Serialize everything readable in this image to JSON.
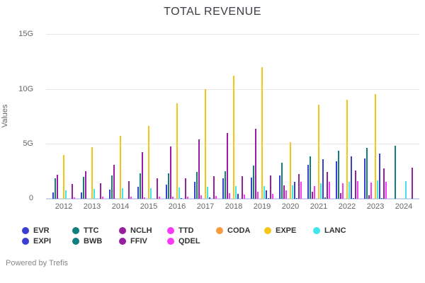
{
  "title": "TOTAL REVENUE",
  "y_axis": {
    "label": "Values",
    "ticks": [
      "0",
      "5G",
      "10G",
      "15G"
    ],
    "tick_values": [
      0,
      5,
      10,
      15
    ]
  },
  "powered_by": "Powered by Trefis",
  "chart_data": {
    "type": "bar",
    "title": "TOTAL REVENUE",
    "xlabel": "",
    "ylabel": "Values",
    "ylim": [
      0,
      15
    ],
    "unit": "G",
    "grid": "horizontal",
    "legend_position": "bottom",
    "categories": [
      "2012",
      "2013",
      "2014",
      "2015",
      "2016",
      "2017",
      "2018",
      "2019",
      "2020",
      "2021",
      "2022",
      "2023",
      "2024"
    ],
    "series": [
      {
        "name": "EVR",
        "color": "#3a3fd0",
        "values": [
          0.55,
          0.6,
          0.85,
          1.1,
          1.3,
          1.55,
          1.9,
          1.95,
          2.15,
          3.1,
          3.4,
          3.7,
          0
        ]
      },
      {
        "name": "TTC",
        "color": "#0f7e7c",
        "values": [
          1.9,
          2.0,
          2.15,
          2.3,
          2.35,
          2.45,
          2.55,
          3.05,
          3.3,
          3.9,
          4.4,
          4.65,
          4.85
        ]
      },
      {
        "name": "NCLH",
        "color": "#971f9f",
        "values": [
          2.2,
          2.5,
          3.1,
          4.25,
          4.8,
          5.4,
          6.0,
          6.4,
          1.25,
          0.65,
          0.5,
          0.3,
          0
        ]
      },
      {
        "name": "TTD",
        "color": "#f83af8",
        "values": [
          0,
          0,
          0,
          0.1,
          0.2,
          0.3,
          0.5,
          0.65,
          0.8,
          1.15,
          1.4,
          1.5,
          0
        ]
      },
      {
        "name": "CODA",
        "color": "#f99b3f",
        "values": [
          0,
          0,
          0,
          0,
          0,
          0,
          0,
          0,
          0,
          0,
          0,
          0,
          0
        ]
      },
      {
        "name": "EXPE",
        "color": "#f5c518",
        "values": [
          4.0,
          4.75,
          5.75,
          6.65,
          8.75,
          10.05,
          11.25,
          12.0,
          5.15,
          8.6,
          9.05,
          9.6,
          0
        ]
      },
      {
        "name": "LANC",
        "color": "#3fe5e8",
        "values": [
          0.75,
          0.9,
          0.95,
          1.0,
          1.05,
          1.1,
          1.15,
          1.15,
          1.2,
          1.4,
          1.55,
          1.65,
          1.6
        ]
      },
      {
        "name": "EXPI",
        "color": "#3a3fd0",
        "values": [
          0,
          0,
          0,
          0,
          0.05,
          0.15,
          0.45,
          0.75,
          1.55,
          3.65,
          3.85,
          4.15,
          0
        ]
      },
      {
        "name": "BWB",
        "color": "#0f7e7c",
        "values": [
          0,
          0,
          0,
          0,
          0,
          0,
          0,
          0.05,
          0.05,
          0.1,
          0.05,
          0.05,
          0
        ]
      },
      {
        "name": "FFIV",
        "color": "#971f9f",
        "values": [
          1.35,
          1.4,
          1.6,
          1.85,
          1.9,
          2.05,
          2.1,
          2.15,
          2.25,
          2.45,
          2.6,
          2.75,
          2.85
        ]
      },
      {
        "name": "QDEL",
        "color": "#f83af8",
        "values": [
          0.15,
          0.17,
          0.2,
          0.2,
          0.2,
          0.28,
          0.4,
          0.45,
          1.55,
          1.55,
          1.6,
          1.55,
          0
        ]
      }
    ],
    "legend_rows": [
      [
        "EVR",
        "TTC",
        "NCLH",
        "TTD",
        "CODA",
        "EXPE",
        "LANC"
      ],
      [
        "EXPI",
        "BWB",
        "FFIV",
        "QDEL"
      ]
    ]
  }
}
